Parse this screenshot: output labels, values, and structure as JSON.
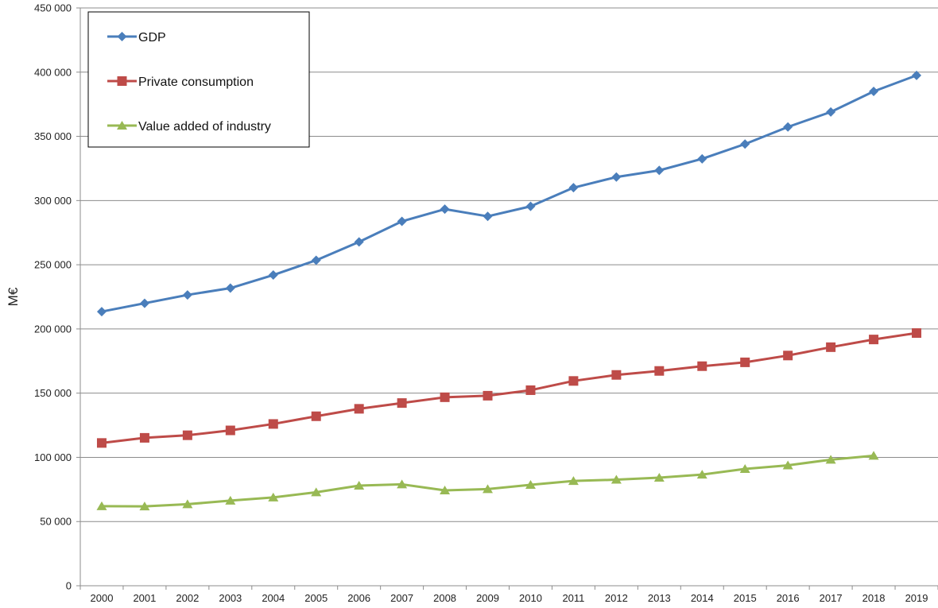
{
  "chart_data": {
    "type": "line",
    "title": "",
    "xlabel": "",
    "ylabel": "M€",
    "ylim": [
      0,
      450000
    ],
    "yticks": [
      0,
      50000,
      100000,
      150000,
      200000,
      250000,
      300000,
      350000,
      400000,
      450000
    ],
    "ytick_labels": [
      "0",
      "50 000",
      "100 000",
      "150 000",
      "200 000",
      "250 000",
      "300 000",
      "350 000",
      "400 000",
      "450 000"
    ],
    "grid": "horizontal",
    "legend_position": "top-left",
    "categories": [
      "2000",
      "2001",
      "2002",
      "2003",
      "2004",
      "2005",
      "2006",
      "2007",
      "2008",
      "2009",
      "2010",
      "2011",
      "2012",
      "2013",
      "2014",
      "2015",
      "2016",
      "2017",
      "2018",
      "2019"
    ],
    "series": [
      {
        "name": "GDP",
        "color": "#4a7ebb",
        "marker": "diamond",
        "values": [
          213500,
          220000,
          226500,
          231800,
          242000,
          253500,
          267800,
          283800,
          293300,
          287700,
          295500,
          310000,
          318300,
          323500,
          332500,
          344000,
          357300,
          369000,
          385000,
          397500
        ]
      },
      {
        "name": "Private consumption",
        "color": "#be4b48",
        "marker": "square",
        "values": [
          111200,
          115200,
          117200,
          121000,
          126000,
          132000,
          137800,
          142300,
          146800,
          148000,
          152300,
          159500,
          164200,
          167300,
          171000,
          174000,
          179300,
          185800,
          191800,
          196800
        ]
      },
      {
        "name": "Value added of industry",
        "color": "#98b954",
        "marker": "triangle",
        "values": [
          62000,
          61800,
          63500,
          66300,
          68800,
          72800,
          78000,
          79000,
          74300,
          75300,
          78600,
          81600,
          82600,
          84200,
          86600,
          91000,
          93800,
          98200,
          101300,
          null
        ]
      }
    ]
  }
}
